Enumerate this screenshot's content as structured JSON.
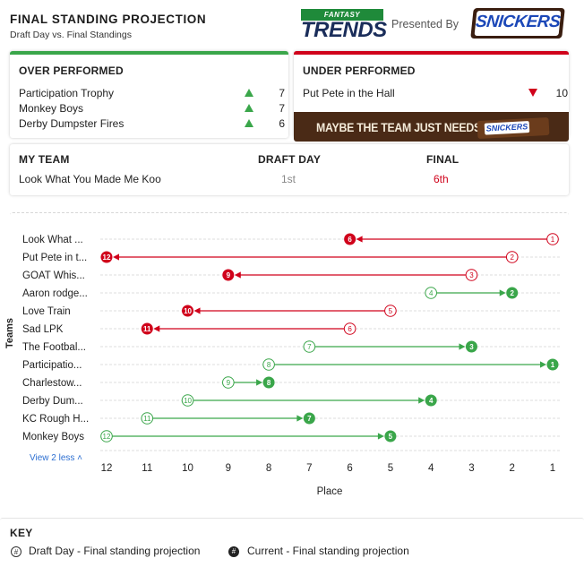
{
  "header": {
    "title": "FINAL STANDING PROJECTION",
    "subtitle": "Draft Day vs. Final Standings",
    "ft_badge": "FANTASY",
    "ft_brand": "TRENDS",
    "presented_by": "Presented By",
    "sponsor": "SNICKERS"
  },
  "over": {
    "heading": "OVER PERFORMED",
    "rows": [
      {
        "name": "Participation Trophy",
        "value": "7"
      },
      {
        "name": "Monkey Boys",
        "value": "7"
      },
      {
        "name": "Derby Dumpster Fires",
        "value": "6"
      }
    ]
  },
  "under": {
    "heading": "UNDER PERFORMED",
    "rows": [
      {
        "name": "Put Pete in the Hall",
        "value": "10"
      }
    ],
    "banner_text": "MAYBE THE TEAM JUST NEEDS A",
    "banner_bar_label": "SNICKERS"
  },
  "my_team": {
    "h_team": "MY TEAM",
    "h_draft": "DRAFT DAY",
    "h_final": "FINAL",
    "team": "Look What You Made Me Koo",
    "draft": "1st",
    "final": "6th"
  },
  "colors": {
    "up": "#3aa64a",
    "down": "#d0021b",
    "grid": "#dddddd"
  },
  "chart_data": {
    "type": "dumbbell",
    "xlabel": "Place",
    "ylabel": "Teams",
    "x_ticks": [
      "12",
      "11",
      "10",
      "9",
      "8",
      "7",
      "6",
      "5",
      "4",
      "3",
      "2",
      "1"
    ],
    "xlim": [
      12,
      1
    ],
    "view_less": "View 2 less",
    "teams": [
      {
        "label": "Look What ...",
        "draft": 1,
        "final": 6
      },
      {
        "label": "Put Pete in t...",
        "draft": 2,
        "final": 12
      },
      {
        "label": "GOAT Whis...",
        "draft": 3,
        "final": 9
      },
      {
        "label": "Aaron rodge...",
        "draft": 4,
        "final": 2
      },
      {
        "label": "Love Train",
        "draft": 5,
        "final": 10
      },
      {
        "label": "Sad LPK",
        "draft": 6,
        "final": 11
      },
      {
        "label": "The Footbal...",
        "draft": 7,
        "final": 3
      },
      {
        "label": "Participatio...",
        "draft": 8,
        "final": 1
      },
      {
        "label": "Charlestow...",
        "draft": 9,
        "final": 8
      },
      {
        "label": "Derby Dum...",
        "draft": 10,
        "final": 4
      },
      {
        "label": "KC Rough H...",
        "draft": 11,
        "final": 7
      },
      {
        "label": "Monkey Boys",
        "draft": 12,
        "final": 5
      }
    ]
  },
  "key": {
    "title": "KEY",
    "open_symbol": "#",
    "filled_symbol": "#",
    "draft_label": "Draft Day - Final standing projection",
    "current_label": "Current - Final standing projection"
  }
}
